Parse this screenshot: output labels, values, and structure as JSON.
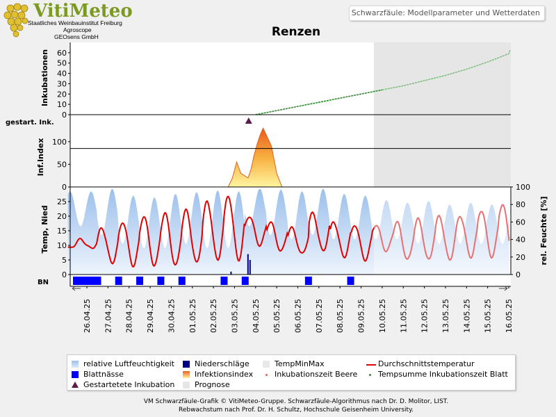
{
  "header": {
    "logo_name": "VitiMeteo",
    "logo_lines": [
      "Staatliches Weinbauinstitut Freiburg",
      "Agroscope",
      "GEOsens GmbH"
    ],
    "window_title": "Schwarzfäule: Modellparameter und Wetterdaten"
  },
  "chart_title": "Renzen",
  "colors": {
    "background": "#f0f0f0",
    "prognosis_shade": "#e6e6e6",
    "humidity": "#a8c8ee",
    "temperature": "#e00000",
    "leaf_wetness": "#0000ff",
    "precipitation": "#000080",
    "infection_index_top": "#e86020",
    "infection_index_bottom": "#fff2a0",
    "incubation_sum": "#2a8c2a",
    "marker": "#5a1a4a"
  },
  "chart_data": {
    "type": "line",
    "dates": [
      "26.04.25",
      "27.04.25",
      "28.04.25",
      "29.04.25",
      "30.04.25",
      "01.05.25",
      "02.05.25",
      "03.05.25",
      "04.05.25",
      "05.05.25",
      "06.05.25",
      "07.05.25",
      "08.05.25",
      "09.05.25",
      "10.05.25",
      "11.05.25",
      "12.05.25",
      "13.05.25",
      "14.05.25",
      "15.05.25",
      "16.05.25"
    ],
    "prognosis_start": "10.05.25",
    "panels": {
      "incubation": {
        "ylabel": "Inkubationen",
        "ylim": [
          0,
          70
        ],
        "ticks": [
          0,
          10,
          20,
          30,
          40,
          50,
          60
        ],
        "series_name": "Tempsumme Inkubationszeit Blatt",
        "points": [
          [
            "04.05.25",
            0
          ],
          [
            "05.05.25",
            4
          ],
          [
            "06.05.25",
            8
          ],
          [
            "07.05.25",
            12
          ],
          [
            "08.05.25",
            16
          ],
          [
            "09.05.25",
            20
          ],
          [
            "10.05.25",
            24
          ],
          [
            "11.05.25",
            28
          ],
          [
            "12.05.25",
            33
          ],
          [
            "13.05.25",
            38
          ],
          [
            "14.05.25",
            44
          ],
          [
            "15.05.25",
            51
          ],
          [
            "16.05.25",
            59
          ],
          [
            "16.05.25",
            63
          ]
        ]
      },
      "started_incubation": {
        "label": "gestart. Ink.",
        "series_name": "Gestartetete Inkubation",
        "events": [
          "04.05.25"
        ]
      },
      "infection_index": {
        "ylabel": "Inf.Index",
        "ylim": [
          0,
          135
        ],
        "ticks": [
          0,
          50,
          100
        ],
        "threshold": 85,
        "series_name": "Infektionsindex",
        "points": [
          [
            "03.05.25",
            0
          ],
          [
            "03.05.25",
            20
          ],
          [
            "03.05.25",
            55
          ],
          [
            "03.05.25",
            30
          ],
          [
            "04.05.25",
            20
          ],
          [
            "04.05.25",
            40
          ],
          [
            "04.05.25",
            70
          ],
          [
            "04.05.25",
            95
          ],
          [
            "04.05.25",
            115
          ],
          [
            "04.05.25",
            130
          ],
          [
            "05.05.25",
            90
          ],
          [
            "05.05.25",
            30
          ],
          [
            "05.05.25",
            0
          ]
        ]
      },
      "weather": {
        "ylabel_left": "Temp, Nied",
        "ylabel_right": "rel. Feuchte [%]",
        "ylim_left": [
          0,
          30
        ],
        "ticks_left": [
          0,
          5,
          10,
          15,
          20,
          25
        ],
        "ylim_right": [
          0,
          100
        ],
        "ticks_right": [
          0,
          20,
          40,
          60,
          80,
          100
        ],
        "series": [
          {
            "name": "relative Luftfeuchtigkeit",
            "daily_max": [
              95,
              98,
              90,
              88,
              92,
              94,
              96,
              95,
              98,
              97,
              95,
              98,
              92,
              90,
              85,
              82,
              84,
              80,
              82,
              80,
              78
            ],
            "daily_min": [
              55,
              45,
              35,
              30,
              30,
              35,
              30,
              30,
              55,
              45,
              40,
              45,
              40,
              40,
              40,
              40,
              35,
              35,
              35,
              35,
              35
            ]
          },
          {
            "name": "Durchschnittstemperatur",
            "daily_min": [
              9,
              4,
              3,
              3,
              3,
              4,
              5,
              5,
              10,
              8,
              7,
              8,
              6,
              5,
              8,
              5,
              5,
              5,
              6,
              6,
              7
            ],
            "daily_max": [
              12,
              16,
              18,
              20,
              21,
              22,
              25,
              27,
              20,
              18,
              16,
              21,
              18,
              17,
              17,
              18,
              19,
              20,
              20,
              22,
              24
            ]
          },
          {
            "name": "Niederschläge",
            "values": [
              [
                "04.05.25",
                7
              ],
              [
                "04.05.25",
                5
              ],
              [
                "03.05.25",
                1
              ]
            ]
          }
        ]
      },
      "leaf_wetness": {
        "label": "BN",
        "series_name": "Blattnässe",
        "intervals": [
          [
            "26.04.25",
            "27.04.25"
          ],
          [
            "27.04.25",
            "27.04.25"
          ],
          [
            "28.04.25",
            "28.04.25"
          ],
          [
            "29.04.25",
            "29.04.25"
          ],
          [
            "30.04.25",
            "30.04.25"
          ],
          [
            "01.05.25",
            "01.05.25"
          ],
          [
            "03.05.25",
            "03.05.25"
          ],
          [
            "04.05.25",
            "04.05.25"
          ],
          [
            "07.05.25",
            "07.05.25"
          ],
          [
            "09.05.25",
            "09.05.25"
          ]
        ]
      }
    }
  },
  "legend": [
    {
      "key": "humidity",
      "label": "relative Luftfeuchtigkeit",
      "icon": "humidity-swatch"
    },
    {
      "key": "precip",
      "label": "Niederschläge",
      "icon": "precipitation-swatch"
    },
    {
      "key": "tminmax",
      "label": "TempMinMax",
      "icon": "tempminmax-swatch"
    },
    {
      "key": "tavg",
      "label": "Durchschnittstemperatur",
      "icon": "temperature-line"
    },
    {
      "key": "leafwet",
      "label": "Blattnässe",
      "icon": "leaf-wetness-swatch"
    },
    {
      "key": "infidx",
      "label": "Infektionsindex",
      "icon": "infection-index-swatch"
    },
    {
      "key": "incberry",
      "label": "Inkubationszeit Beere",
      "icon": "berry-dot"
    },
    {
      "key": "incleaf",
      "label": "Tempsumme Inkubationszeit Blatt",
      "icon": "leaf-dot"
    },
    {
      "key": "started",
      "label": "Gestartetete Inkubation",
      "icon": "triangle-marker"
    },
    {
      "key": "prognose",
      "label": "Prognose",
      "icon": "prognosis-swatch"
    }
  ],
  "footer": [
    "VM Schwarzfäule-Grafik © VitiMeteo-Gruppe. Schwarzfäule-Algorithmus nach Dr. D. Molitor, LIST.",
    "Rebwachstum nach Prof. Dr. H. Schultz, Hochschule Geisenheim University."
  ]
}
